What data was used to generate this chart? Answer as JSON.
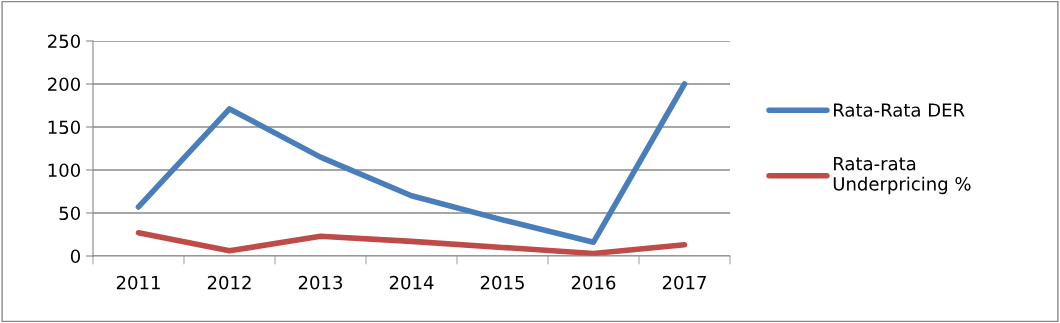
{
  "chart_data": {
    "type": "line",
    "categories": [
      "2011",
      "2012",
      "2013",
      "2014",
      "2015",
      "2016",
      "2017"
    ],
    "series": [
      {
        "name": "Rata-Rata DER",
        "color": "#4a7ebb",
        "values": [
          57,
          171,
          115,
          70,
          42,
          16,
          200
        ]
      },
      {
        "name": "Rata-rata\nUnderpricing %",
        "color": "#be4b48",
        "values": [
          27,
          6,
          23,
          17,
          10,
          3,
          13
        ]
      }
    ],
    "ylim": [
      0,
      250
    ],
    "yticks": [
      0,
      50,
      100,
      150,
      200,
      250
    ],
    "grid": "y",
    "legend": "right",
    "marker": "none",
    "line_style": "solid"
  }
}
